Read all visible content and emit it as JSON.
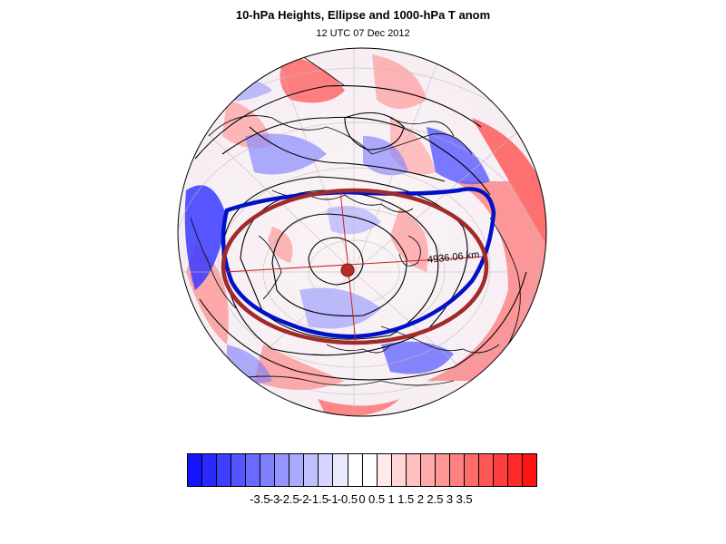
{
  "title": "10-hPa Heights, Ellipse and 1000-hPa T anom",
  "subtitle": "12 UTC 07 Dec 2012",
  "ellipse_label": "4936.06 km",
  "map": {
    "projection": "orthographic polar view",
    "colors": {
      "ellipse": "#a12a2a",
      "polar_vortex_edge": "#0012c8",
      "height_contours": "#000000"
    }
  },
  "colorbar": {
    "labels": [
      "-3.5",
      "-3",
      "-2.5",
      "-2",
      "-1.5",
      "-1",
      "-0.5",
      "0",
      "0.5",
      "1",
      "1.5",
      "2",
      "2.5",
      "3",
      "3.5"
    ],
    "colors": [
      "#1414ff",
      "#2a2aff",
      "#3f3fff",
      "#5555ff",
      "#6a6aff",
      "#8080ff",
      "#9595ff",
      "#aaaaff",
      "#c0c0ff",
      "#d5d5ff",
      "#eaeaff",
      "#ffffff",
      "#ffffff",
      "#ffeaea",
      "#ffd5d5",
      "#ffc0c0",
      "#ffaaaa",
      "#ff9595",
      "#ff8080",
      "#ff6a6a",
      "#ff5555",
      "#ff3f3f",
      "#ff2a2a",
      "#ff1414"
    ]
  }
}
